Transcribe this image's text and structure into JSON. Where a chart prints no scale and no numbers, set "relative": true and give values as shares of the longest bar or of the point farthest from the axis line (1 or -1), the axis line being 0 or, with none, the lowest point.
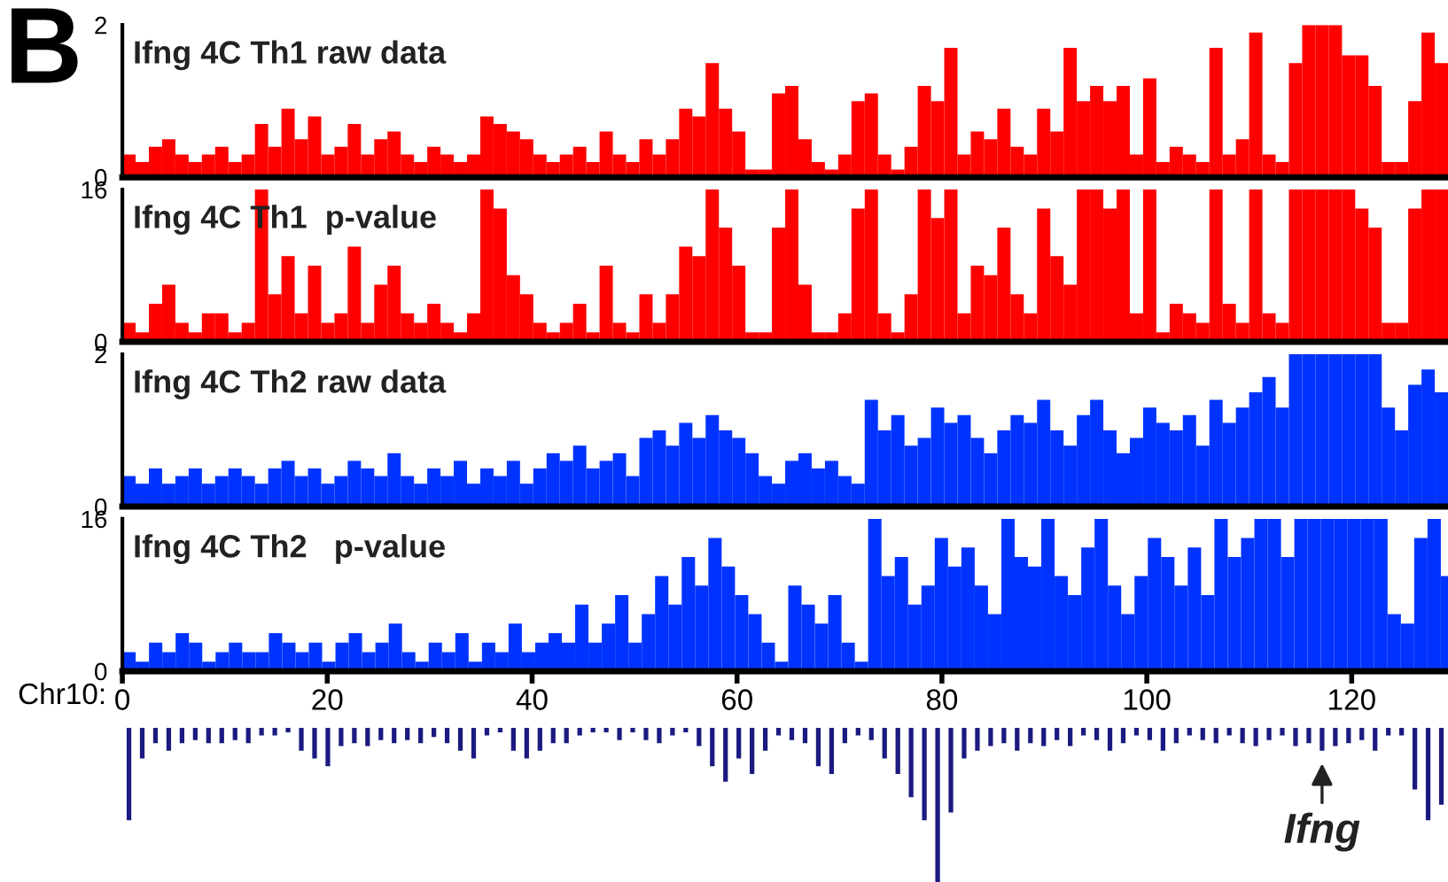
{
  "chart_data": [
    {
      "type": "bar",
      "title": "Ifng 4C Th1 raw data",
      "annotations": [
        "B"
      ],
      "ylim": [
        0,
        2
      ],
      "yticks": [
        0,
        2
      ],
      "tick_labels": "y",
      "grid": false,
      "legend": false,
      "categories": [
        null,
        null,
        null,
        null,
        null,
        null,
        null,
        null,
        null,
        null,
        null,
        null,
        null,
        null,
        null,
        null,
        null,
        null,
        null,
        null,
        null,
        null,
        null,
        null,
        null,
        null,
        null,
        null,
        null,
        null,
        null,
        null,
        null,
        null,
        null,
        null,
        null,
        null,
        null,
        null,
        null,
        null,
        null,
        null,
        null,
        null,
        null,
        null,
        null,
        null,
        null,
        null,
        null,
        null,
        null,
        null,
        null,
        null,
        null,
        null,
        null,
        null,
        null,
        null,
        null,
        null,
        null,
        null,
        null,
        null,
        null,
        null,
        null,
        null,
        null,
        null,
        null,
        null,
        null,
        null,
        null,
        null,
        null,
        null,
        null,
        null,
        null,
        null,
        null,
        null,
        null,
        null,
        null,
        null,
        null,
        null,
        null,
        null,
        null,
        null
      ],
      "series": [
        {
          "color": "#ff0000",
          "values": [
            0.3,
            0.2,
            0.4,
            0.5,
            0.3,
            0.2,
            0.3,
            0.4,
            0.2,
            0.3,
            0.7,
            0.4,
            0.9,
            0.5,
            0.8,
            0.3,
            0.4,
            0.7,
            0.3,
            0.5,
            0.6,
            0.3,
            0.2,
            0.4,
            0.3,
            0.2,
            0.3,
            0.8,
            0.7,
            0.6,
            0.5,
            0.3,
            0.2,
            0.3,
            0.4,
            0.2,
            0.6,
            0.3,
            0.2,
            0.5,
            0.3,
            0.5,
            0.9,
            0.8,
            1.5,
            0.9,
            0.6,
            0.1,
            0.1,
            1.1,
            1.2,
            0.5,
            0.2,
            0.1,
            0.3,
            1.0,
            1.1,
            0.3,
            0.1,
            0.4,
            1.2,
            1.0,
            1.7,
            0.3,
            0.6,
            0.5,
            0.9,
            0.4,
            0.3,
            0.9,
            0.6,
            1.7,
            1.0,
            1.2,
            1.0,
            1.2,
            0.3,
            1.3,
            0.2,
            0.4,
            0.3,
            0.2,
            1.7,
            0.3,
            0.5,
            1.9,
            0.3,
            0.2,
            1.5,
            2,
            2,
            2,
            1.6,
            1.6,
            1.2,
            0.2,
            0.2,
            1.0,
            1.9,
            1.5
          ]
        }
      ]
    },
    {
      "type": "bar",
      "title": "Ifng 4C Th1  p-value",
      "ylim": [
        0,
        16
      ],
      "yticks": [
        0,
        16
      ],
      "tick_labels": "y",
      "grid": false,
      "legend": false,
      "categories": [
        null,
        null,
        null,
        null,
        null,
        null,
        null,
        null,
        null,
        null,
        null,
        null,
        null,
        null,
        null,
        null,
        null,
        null,
        null,
        null,
        null,
        null,
        null,
        null,
        null,
        null,
        null,
        null,
        null,
        null,
        null,
        null,
        null,
        null,
        null,
        null,
        null,
        null,
        null,
        null,
        null,
        null,
        null,
        null,
        null,
        null,
        null,
        null,
        null,
        null,
        null,
        null,
        null,
        null,
        null,
        null,
        null,
        null,
        null,
        null,
        null,
        null,
        null,
        null,
        null,
        null,
        null,
        null,
        null,
        null,
        null,
        null,
        null,
        null,
        null,
        null,
        null,
        null,
        null,
        null,
        null,
        null,
        null,
        null,
        null,
        null,
        null,
        null,
        null,
        null,
        null,
        null,
        null,
        null,
        null,
        null,
        null,
        null,
        null,
        null
      ],
      "series": [
        {
          "color": "#ff0000",
          "values": [
            2,
            1,
            4,
            6,
            2,
            1,
            3,
            3,
            1,
            2,
            16,
            5,
            9,
            3,
            8,
            2,
            3,
            10,
            2,
            6,
            8,
            3,
            2,
            4,
            2,
            1,
            3,
            16,
            14,
            7,
            5,
            2,
            1,
            2,
            4,
            1,
            8,
            2,
            1,
            5,
            2,
            5,
            10,
            9,
            16,
            12,
            8,
            1,
            1,
            12,
            16,
            6,
            1,
            1,
            3,
            14,
            16,
            3,
            1,
            5,
            16,
            13,
            16,
            3,
            8,
            7,
            12,
            5,
            3,
            14,
            9,
            6,
            16,
            16,
            14,
            16,
            3,
            16,
            1,
            4,
            3,
            2,
            16,
            4,
            2,
            16,
            3,
            2,
            16,
            16,
            16,
            16,
            16,
            14,
            12,
            2,
            2,
            14,
            16,
            16
          ]
        }
      ]
    },
    {
      "type": "bar",
      "title": "Ifng 4C Th2 raw data",
      "ylim": [
        0,
        2
      ],
      "yticks": [
        0,
        2
      ],
      "tick_labels": "y",
      "grid": false,
      "legend": false,
      "categories": [
        null,
        null,
        null,
        null,
        null,
        null,
        null,
        null,
        null,
        null,
        null,
        null,
        null,
        null,
        null,
        null,
        null,
        null,
        null,
        null,
        null,
        null,
        null,
        null,
        null,
        null,
        null,
        null,
        null,
        null,
        null,
        null,
        null,
        null,
        null,
        null,
        null,
        null,
        null,
        null,
        null,
        null,
        null,
        null,
        null,
        null,
        null,
        null,
        null,
        null,
        null,
        null,
        null,
        null,
        null,
        null,
        null,
        null,
        null,
        null,
        null,
        null,
        null,
        null,
        null,
        null,
        null,
        null,
        null,
        null,
        null,
        null,
        null,
        null,
        null,
        null,
        null,
        null,
        null,
        null,
        null,
        null,
        null,
        null,
        null,
        null,
        null,
        null,
        null,
        null,
        null,
        null,
        null,
        null,
        null,
        null,
        null,
        null,
        null,
        null
      ],
      "series": [
        {
          "color": "#0033ff",
          "values": [
            0.4,
            0.3,
            0.5,
            0.3,
            0.4,
            0.5,
            0.3,
            0.4,
            0.5,
            0.4,
            0.3,
            0.5,
            0.6,
            0.4,
            0.5,
            0.3,
            0.4,
            0.6,
            0.5,
            0.4,
            0.7,
            0.4,
            0.3,
            0.5,
            0.4,
            0.6,
            0.3,
            0.5,
            0.4,
            0.6,
            0.3,
            0.5,
            0.7,
            0.6,
            0.8,
            0.5,
            0.6,
            0.7,
            0.4,
            0.9,
            1.0,
            0.8,
            1.1,
            0.9,
            1.2,
            1.0,
            0.9,
            0.7,
            0.4,
            0.3,
            0.6,
            0.7,
            0.5,
            0.6,
            0.4,
            0.3,
            1.4,
            1.0,
            1.2,
            0.8,
            0.9,
            1.3,
            1.1,
            1.2,
            0.9,
            0.7,
            1.0,
            1.2,
            1.1,
            1.4,
            1.0,
            0.8,
            1.2,
            1.4,
            1.0,
            0.7,
            0.9,
            1.3,
            1.1,
            1.0,
            1.2,
            0.8,
            1.4,
            1.1,
            1.3,
            1.5,
            1.7,
            1.3,
            2,
            2,
            2,
            2,
            2,
            2,
            2,
            1.3,
            1.0,
            1.6,
            1.8,
            1.5
          ]
        }
      ]
    },
    {
      "type": "bar",
      "title": "Ifng 4C Th2   p-value",
      "xlabel": "Chr10:",
      "xlim": [
        0,
        129.4
      ],
      "xticks": [
        0,
        20,
        40,
        60,
        80,
        100,
        120
      ],
      "ylim": [
        0,
        16
      ],
      "yticks": [
        0,
        16
      ],
      "grid": false,
      "legend": false,
      "series": [
        {
          "color": "#0033ff",
          "x": [
            0,
            1.3,
            2.6,
            3.9,
            5.2,
            6.5,
            7.8,
            9.1,
            10.4,
            11.7,
            13,
            14.3,
            15.6,
            16.9,
            18.2,
            19.5,
            20.8,
            22.1,
            23.4,
            24.7,
            26,
            27.3,
            28.6,
            29.9,
            31.2,
            32.5,
            33.8,
            35.1,
            36.4,
            37.7,
            39,
            40.3,
            41.6,
            42.9,
            44.2,
            45.5,
            46.8,
            48.1,
            49.4,
            50.7,
            52,
            53.3,
            54.6,
            55.9,
            57.2,
            58.5,
            59.8,
            61.1,
            62.4,
            63.7,
            65,
            66.3,
            67.6,
            68.9,
            70.2,
            71.5,
            72.8,
            74.1,
            75.4,
            76.7,
            78,
            79.3,
            80.6,
            81.9,
            83.2,
            84.5,
            85.8,
            87.1,
            88.4,
            89.7,
            91,
            92.3,
            93.6,
            94.9,
            96.2,
            97.5,
            98.8,
            100.1,
            101.4,
            102.7,
            104,
            105.3,
            106.6,
            107.9,
            109.2,
            110.5,
            111.8,
            113.1,
            114.4,
            115.7,
            117,
            118.3,
            119.6,
            120.9,
            122.2,
            123.5,
            124.8,
            126.1,
            127.4,
            128.7
          ],
          "values": [
            2,
            1,
            3,
            2,
            4,
            3,
            1,
            2,
            3,
            2,
            2,
            4,
            3,
            2,
            3,
            1,
            3,
            4,
            2,
            3,
            5,
            2,
            1,
            3,
            2,
            4,
            1,
            3,
            2,
            5,
            2,
            3,
            4,
            3,
            7,
            3,
            5,
            8,
            3,
            6,
            10,
            7,
            12,
            9,
            14,
            11,
            8,
            6,
            3,
            1,
            9,
            7,
            5,
            8,
            3,
            1,
            16,
            10,
            12,
            7,
            9,
            14,
            11,
            13,
            9,
            6,
            16,
            12,
            11,
            16,
            10,
            8,
            13,
            16,
            9,
            6,
            10,
            14,
            12,
            9,
            13,
            8,
            16,
            12,
            14,
            16,
            16,
            12,
            16,
            16,
            16,
            16,
            16,
            16,
            16,
            6,
            5,
            14,
            16,
            10
          ]
        }
      ]
    },
    {
      "type": "bar",
      "relative": true,
      "tick_labels": false,
      "grid": false,
      "legend": false,
      "annotations": [
        "Ifng"
      ],
      "categories": [
        null,
        null,
        null,
        null,
        null,
        null,
        null,
        null,
        null,
        null,
        null,
        null,
        null,
        null,
        null,
        null,
        null,
        null,
        null,
        null,
        null,
        null,
        null,
        null,
        null,
        null,
        null,
        null,
        null,
        null,
        null,
        null,
        null,
        null,
        null,
        null,
        null,
        null,
        null,
        null,
        null,
        null,
        null,
        null,
        null,
        null,
        null,
        null,
        null,
        null,
        null,
        null,
        null,
        null,
        null,
        null,
        null,
        null,
        null,
        null,
        null,
        null,
        null,
        null,
        null,
        null,
        null,
        null,
        null,
        null,
        null,
        null,
        null,
        null,
        null,
        null,
        null,
        null,
        null,
        null,
        null,
        null,
        null,
        null,
        null,
        null,
        null,
        null,
        null,
        null,
        null,
        null,
        null,
        null,
        null,
        null,
        null,
        null,
        null,
        null
      ],
      "series": [
        {
          "color": "#1a1a80",
          "values": [
            -0.6,
            -0.2,
            -0.1,
            -0.15,
            -0.1,
            -0.08,
            -0.1,
            -0.1,
            -0.08,
            -0.1,
            -0.05,
            -0.05,
            -0.03,
            -0.15,
            -0.2,
            -0.25,
            -0.12,
            -0.1,
            -0.12,
            -0.08,
            -0.1,
            -0.08,
            -0.1,
            -0.06,
            -0.1,
            -0.15,
            -0.2,
            -0.05,
            -0.03,
            -0.15,
            -0.2,
            -0.15,
            -0.1,
            -0.1,
            -0.05,
            -0.03,
            -0.03,
            -0.08,
            -0.03,
            -0.08,
            -0.1,
            -0.05,
            -0.03,
            -0.12,
            -0.25,
            -0.35,
            -0.2,
            -0.3,
            -0.15,
            -0.05,
            -0.08,
            -0.1,
            -0.25,
            -0.3,
            -0.1,
            -0.05,
            -0.08,
            -0.2,
            -0.3,
            -0.45,
            -0.6,
            -1,
            -0.55,
            -0.2,
            -0.15,
            -0.12,
            -0.1,
            -0.15,
            -0.1,
            -0.12,
            -0.08,
            -0.12,
            -0.05,
            -0.08,
            -0.15,
            -0.1,
            -0.05,
            -0.08,
            -0.15,
            -0.1,
            -0.05,
            -0.08,
            -0.1,
            -0.05,
            -0.1,
            -0.12,
            -0.08,
            -0.05,
            -0.12,
            -0.1,
            -0.15,
            -0.12,
            -0.1,
            -0.08,
            -0.15,
            -0.05,
            -0.05,
            -0.4,
            -0.6,
            -0.5
          ]
        }
      ]
    }
  ]
}
